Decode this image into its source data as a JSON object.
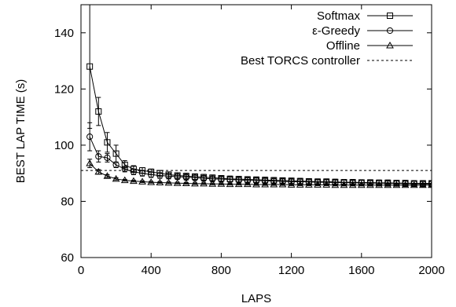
{
  "chart_data": {
    "type": "line",
    "xlabel": "LAPS",
    "ylabel": "BEST LAP TIME (s)",
    "xlim": [
      0,
      2000
    ],
    "ylim": [
      60,
      150
    ],
    "xticks": [
      0,
      400,
      800,
      1200,
      1600,
      2000
    ],
    "yticks": [
      60,
      80,
      100,
      120,
      140
    ],
    "grid": false,
    "legend_position": "top-right",
    "series": [
      {
        "name": "Softmax",
        "marker": "square",
        "color": "#000000",
        "x": [
          50,
          100,
          150,
          200,
          250,
          300,
          350,
          400,
          450,
          500,
          550,
          600,
          650,
          700,
          750,
          800,
          850,
          900,
          950,
          1000,
          1050,
          1100,
          1150,
          1200,
          1250,
          1300,
          1350,
          1400,
          1450,
          1500,
          1550,
          1600,
          1650,
          1700,
          1750,
          1800,
          1850,
          1900,
          1950,
          2000
        ],
        "y": [
          128,
          112,
          101,
          97,
          93,
          91.5,
          91,
          90.5,
          90,
          89.5,
          89.2,
          89,
          88.8,
          88.6,
          88.4,
          88.2,
          88,
          87.9,
          87.8,
          87.7,
          87.6,
          87.5,
          87.4,
          87.3,
          87.2,
          87.1,
          87,
          87,
          86.9,
          86.8,
          86.8,
          86.7,
          86.7,
          86.6,
          86.6,
          86.5,
          86.5,
          86.4,
          86.4,
          86.4
        ],
        "error": [
          22,
          5,
          3.5,
          3,
          1.5,
          1.2,
          1,
          1,
          1,
          1,
          1,
          1,
          1,
          1,
          1,
          1,
          1,
          1,
          1,
          1,
          1,
          1,
          1,
          1,
          1,
          1,
          1,
          1,
          1,
          1,
          1,
          1,
          1,
          1,
          1,
          1,
          1,
          1,
          1,
          1
        ]
      },
      {
        "name": "ε-Greedy",
        "marker": "circle",
        "color": "#000000",
        "x": [
          50,
          100,
          150,
          200,
          250,
          300,
          350,
          400,
          450,
          500,
          550,
          600,
          650,
          700,
          750,
          800,
          850,
          900,
          950,
          1000,
          1050,
          1100,
          1150,
          1200,
          1250,
          1300,
          1350,
          1400,
          1450,
          1500,
          1550,
          1600,
          1650,
          1700,
          1750,
          1800,
          1850,
          1900,
          1950,
          2000
        ],
        "y": [
          103,
          96,
          95.5,
          93,
          91.5,
          90.5,
          90,
          89.5,
          89.2,
          89,
          88.8,
          88.6,
          88.4,
          88.2,
          88,
          87.9,
          87.8,
          87.6,
          87.5,
          87.4,
          87.3,
          87.2,
          87.1,
          87,
          87,
          86.9,
          86.8,
          86.8,
          86.7,
          86.7,
          86.6,
          86.6,
          86.5,
          86.5,
          86.4,
          86.4,
          86.3,
          86.3,
          86.2,
          86.2
        ],
        "error": [
          5,
          2,
          1.5,
          1,
          1,
          1,
          1,
          1,
          1,
          1,
          1,
          1,
          1,
          1,
          1,
          1,
          1,
          1,
          1,
          1,
          1,
          1,
          1,
          1,
          1,
          1,
          1,
          1,
          1,
          1,
          1,
          1,
          1,
          1,
          1,
          1,
          1,
          1,
          1,
          1
        ]
      },
      {
        "name": "Offline",
        "marker": "triangle",
        "color": "#000000",
        "x": [
          50,
          100,
          150,
          200,
          250,
          300,
          350,
          400,
          450,
          500,
          550,
          600,
          650,
          700,
          750,
          800,
          850,
          900,
          950,
          1000,
          1050,
          1100,
          1150,
          1200,
          1250,
          1300,
          1350,
          1400,
          1450,
          1500,
          1550,
          1600,
          1650,
          1700,
          1750,
          1800,
          1850,
          1900,
          1950,
          2000
        ],
        "y": [
          93.5,
          90.5,
          89,
          88,
          87.5,
          87.2,
          87,
          86.8,
          86.7,
          86.6,
          86.5,
          86.4,
          86.3,
          86.3,
          86.2,
          86.2,
          86.1,
          86.1,
          86.1,
          86,
          86,
          86,
          86,
          85.9,
          85.9,
          85.9,
          85.9,
          85.9,
          85.8,
          85.8,
          85.8,
          85.8,
          85.8,
          85.8,
          85.8,
          85.8,
          85.8,
          85.8,
          85.8,
          85.8
        ],
        "error": [
          1.5,
          0.8,
          0.5,
          0.4,
          0.3,
          0.3,
          0.3,
          0.3,
          0.3,
          0.3,
          0.3,
          0.3,
          0.3,
          0.3,
          0.3,
          0.3,
          0.3,
          0.3,
          0.3,
          0.3,
          0.3,
          0.3,
          0.3,
          0.3,
          0.3,
          0.3,
          0.3,
          0.3,
          0.3,
          0.3,
          0.3,
          0.3,
          0.3,
          0.3,
          0.3,
          0.3,
          0.3,
          0.3,
          0.3,
          0.3
        ]
      },
      {
        "name": "Best TORCS controller",
        "marker": "none",
        "style": "dashed",
        "color": "#000000",
        "x": [
          0,
          2000
        ],
        "y": [
          91,
          91
        ]
      }
    ]
  }
}
